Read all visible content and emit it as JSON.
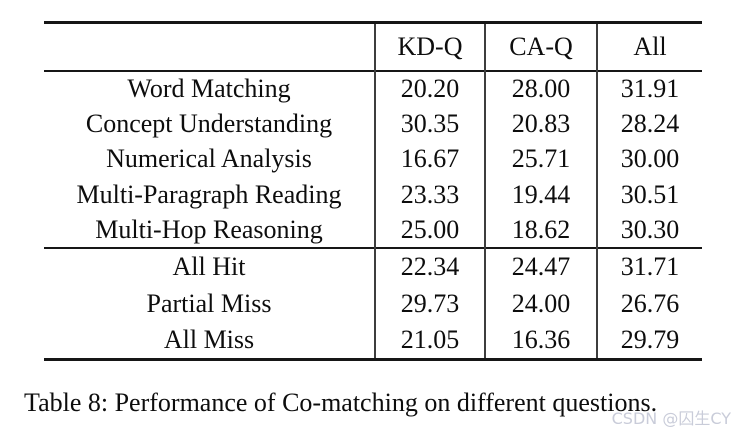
{
  "page": {
    "background": "#ffffff",
    "text_color": "#0d0d0d",
    "rule_color": "#161616",
    "watermark_color": "#c9ccd9"
  },
  "table": {
    "columns": [
      "KD-Q",
      "CA-Q",
      "All"
    ],
    "sections": [
      {
        "rows": [
          {
            "label": "Word Matching",
            "values": [
              "20.20",
              "28.00",
              "31.91"
            ]
          },
          {
            "label": "Concept Understanding",
            "values": [
              "30.35",
              "20.83",
              "28.24"
            ]
          },
          {
            "label": "Numerical Analysis",
            "values": [
              "16.67",
              "25.71",
              "30.00"
            ]
          },
          {
            "label": "Multi-Paragraph Reading",
            "values": [
              "23.33",
              "19.44",
              "30.51"
            ]
          },
          {
            "label": "Multi-Hop Reasoning",
            "values": [
              "25.00",
              "18.62",
              "30.30"
            ]
          }
        ]
      },
      {
        "rows": [
          {
            "label": "All Hit",
            "values": [
              "22.34",
              "24.47",
              "31.71"
            ]
          },
          {
            "label": "Partial Miss",
            "values": [
              "29.73",
              "24.00",
              "26.76"
            ]
          },
          {
            "label": "All Miss",
            "values": [
              "21.05",
              "16.36",
              "29.79"
            ]
          }
        ]
      }
    ]
  },
  "caption": "Table 8: Performance of Co-matching on different questions.",
  "watermark": "CSDN @囚生CY"
}
